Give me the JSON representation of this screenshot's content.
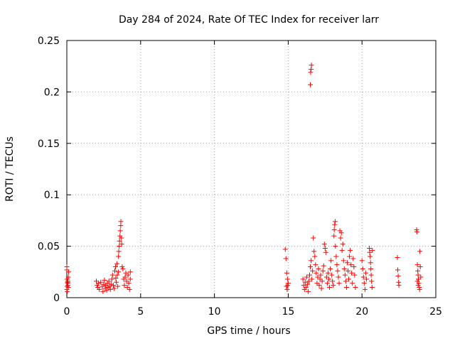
{
  "chart_data": {
    "type": "scatter",
    "title": "Day 284 of 2024, Rate Of TEC Index for receiver larr",
    "xlabel": "GPS time / hours",
    "ylabel": "ROTI / TECUs",
    "xlim": [
      0,
      25
    ],
    "ylim": [
      0,
      0.25
    ],
    "grid": true,
    "marker": "+",
    "color": "#ff0000",
    "x_ticks": [
      0,
      5,
      10,
      15,
      20,
      25
    ],
    "x_tick_labels": [
      "0",
      "5",
      "10",
      "15",
      "20",
      "25"
    ],
    "y_ticks": [
      0,
      0.05,
      0.1,
      0.15,
      0.2,
      0.25
    ],
    "y_tick_labels": [
      "0",
      "0.05",
      "0.1",
      "0.15",
      "0.2",
      "0.25"
    ],
    "series": [
      {
        "name": "ROTI",
        "points": [
          [
            0.0,
            0.03
          ],
          [
            0.0,
            0.027
          ],
          [
            0.02,
            0.018
          ],
          [
            0.05,
            0.015
          ],
          [
            0.08,
            0.012
          ],
          [
            0.1,
            0.01
          ],
          [
            0.0,
            0.008
          ],
          [
            0.03,
            0.006
          ],
          [
            0.06,
            0.014
          ],
          [
            0.1,
            0.02
          ],
          [
            0.12,
            0.025
          ],
          [
            0.02,
            0.011
          ],
          [
            0.07,
            0.016
          ],
          [
            2.0,
            0.016
          ],
          [
            2.05,
            0.012
          ],
          [
            2.1,
            0.01
          ],
          [
            2.15,
            0.014
          ],
          [
            2.2,
            0.008
          ],
          [
            2.3,
            0.015
          ],
          [
            2.4,
            0.011
          ],
          [
            2.45,
            0.006
          ],
          [
            2.5,
            0.013
          ],
          [
            2.55,
            0.017
          ],
          [
            2.6,
            0.009
          ],
          [
            2.65,
            0.012
          ],
          [
            2.7,
            0.007
          ],
          [
            2.75,
            0.014
          ],
          [
            2.8,
            0.01
          ],
          [
            2.85,
            0.016
          ],
          [
            2.9,
            0.011
          ],
          [
            2.95,
            0.008
          ],
          [
            3.0,
            0.013
          ],
          [
            3.05,
            0.018
          ],
          [
            3.1,
            0.022
          ],
          [
            3.15,
            0.012
          ],
          [
            3.2,
            0.009
          ],
          [
            3.25,
            0.026
          ],
          [
            3.3,
            0.03
          ],
          [
            3.32,
            0.019
          ],
          [
            3.35,
            0.015
          ],
          [
            3.4,
            0.033
          ],
          [
            3.42,
            0.022
          ],
          [
            3.45,
            0.011
          ],
          [
            3.5,
            0.025
          ],
          [
            3.5,
            0.04
          ],
          [
            3.52,
            0.045
          ],
          [
            3.55,
            0.05
          ],
          [
            3.57,
            0.055
          ],
          [
            3.6,
            0.06
          ],
          [
            3.62,
            0.065
          ],
          [
            3.65,
            0.07
          ],
          [
            3.66,
            0.074
          ],
          [
            3.7,
            0.058
          ],
          [
            3.72,
            0.052
          ],
          [
            3.75,
            0.03
          ],
          [
            3.8,
            0.028
          ],
          [
            3.85,
            0.018
          ],
          [
            3.9,
            0.012
          ],
          [
            3.95,
            0.02
          ],
          [
            4.0,
            0.024
          ],
          [
            4.05,
            0.016
          ],
          [
            4.1,
            0.01
          ],
          [
            4.15,
            0.022
          ],
          [
            4.2,
            0.014
          ],
          [
            4.25,
            0.008
          ],
          [
            4.3,
            0.018
          ],
          [
            4.3,
            0.025
          ],
          [
            14.8,
            0.047
          ],
          [
            14.85,
            0.038
          ],
          [
            14.9,
            0.024
          ],
          [
            14.95,
            0.018
          ],
          [
            15.0,
            0.014
          ],
          [
            14.88,
            0.011
          ],
          [
            14.93,
            0.008
          ],
          [
            14.97,
            0.012
          ],
          [
            16.0,
            0.018
          ],
          [
            16.05,
            0.012
          ],
          [
            16.1,
            0.008
          ],
          [
            16.15,
            0.015
          ],
          [
            16.2,
            0.01
          ],
          [
            16.25,
            0.02
          ],
          [
            16.3,
            0.013
          ],
          [
            16.35,
            0.006
          ],
          [
            16.4,
            0.016
          ],
          [
            16.45,
            0.022
          ],
          [
            16.5,
            0.207
          ],
          [
            16.52,
            0.219
          ],
          [
            16.55,
            0.222
          ],
          [
            16.57,
            0.226
          ],
          [
            16.5,
            0.03
          ],
          [
            16.55,
            0.036
          ],
          [
            16.6,
            0.018
          ],
          [
            16.65,
            0.026
          ],
          [
            16.7,
            0.058
          ],
          [
            16.75,
            0.045
          ],
          [
            16.8,
            0.04
          ],
          [
            16.85,
            0.032
          ],
          [
            16.9,
            0.024
          ],
          [
            16.95,
            0.014
          ],
          [
            17.0,
            0.02
          ],
          [
            17.05,
            0.028
          ],
          [
            17.1,
            0.012
          ],
          [
            17.15,
            0.018
          ],
          [
            17.2,
            0.022
          ],
          [
            17.25,
            0.009
          ],
          [
            17.3,
            0.016
          ],
          [
            17.35,
            0.026
          ],
          [
            17.4,
            0.031
          ],
          [
            17.45,
            0.052
          ],
          [
            17.5,
            0.048
          ],
          [
            17.55,
            0.044
          ],
          [
            17.6,
            0.02
          ],
          [
            17.65,
            0.014
          ],
          [
            17.7,
            0.024
          ],
          [
            17.75,
            0.018
          ],
          [
            17.8,
            0.01
          ],
          [
            17.85,
            0.028
          ],
          [
            17.9,
            0.036
          ],
          [
            17.95,
            0.022
          ],
          [
            18.0,
            0.016
          ],
          [
            18.05,
            0.012
          ],
          [
            18.1,
            0.06
          ],
          [
            18.12,
            0.066
          ],
          [
            18.15,
            0.071
          ],
          [
            18.18,
            0.074
          ],
          [
            18.2,
            0.05
          ],
          [
            18.25,
            0.04
          ],
          [
            18.3,
            0.032
          ],
          [
            18.35,
            0.026
          ],
          [
            18.4,
            0.02
          ],
          [
            18.45,
            0.014
          ],
          [
            18.5,
            0.065
          ],
          [
            18.55,
            0.058
          ],
          [
            18.6,
            0.063
          ],
          [
            18.65,
            0.046
          ],
          [
            18.7,
            0.052
          ],
          [
            18.75,
            0.036
          ],
          [
            18.8,
            0.028
          ],
          [
            18.85,
            0.022
          ],
          [
            18.9,
            0.016
          ],
          [
            18.95,
            0.01
          ],
          [
            19.0,
            0.034
          ],
          [
            19.05,
            0.026
          ],
          [
            19.1,
            0.018
          ],
          [
            19.15,
            0.04
          ],
          [
            19.2,
            0.046
          ],
          [
            19.25,
            0.032
          ],
          [
            19.3,
            0.024
          ],
          [
            19.35,
            0.014
          ],
          [
            19.4,
            0.038
          ],
          [
            19.45,
            0.03
          ],
          [
            19.5,
            0.022
          ],
          [
            19.55,
            0.01
          ],
          [
            20.0,
            0.036
          ],
          [
            20.05,
            0.028
          ],
          [
            20.1,
            0.02
          ],
          [
            20.15,
            0.014
          ],
          [
            20.2,
            0.008
          ],
          [
            20.25,
            0.024
          ],
          [
            20.3,
            0.018
          ],
          [
            20.5,
            0.048
          ],
          [
            20.52,
            0.044
          ],
          [
            20.55,
            0.04
          ],
          [
            20.58,
            0.034
          ],
          [
            20.6,
            0.028
          ],
          [
            20.62,
            0.022
          ],
          [
            20.65,
            0.016
          ],
          [
            20.68,
            0.01
          ],
          [
            20.7,
            0.046
          ],
          [
            22.4,
            0.039
          ],
          [
            22.42,
            0.027
          ],
          [
            22.45,
            0.021
          ],
          [
            22.48,
            0.015
          ],
          [
            22.5,
            0.012
          ],
          [
            23.7,
            0.066
          ],
          [
            23.72,
            0.064
          ],
          [
            23.75,
            0.032
          ],
          [
            23.78,
            0.026
          ],
          [
            23.8,
            0.022
          ],
          [
            23.82,
            0.018
          ],
          [
            23.85,
            0.014
          ],
          [
            23.88,
            0.01
          ],
          [
            23.9,
            0.008
          ],
          [
            23.92,
            0.045
          ],
          [
            23.95,
            0.03
          ],
          [
            23.98,
            0.02
          ],
          [
            23.75,
            0.016
          ],
          [
            23.8,
            0.012
          ]
        ]
      }
    ]
  }
}
